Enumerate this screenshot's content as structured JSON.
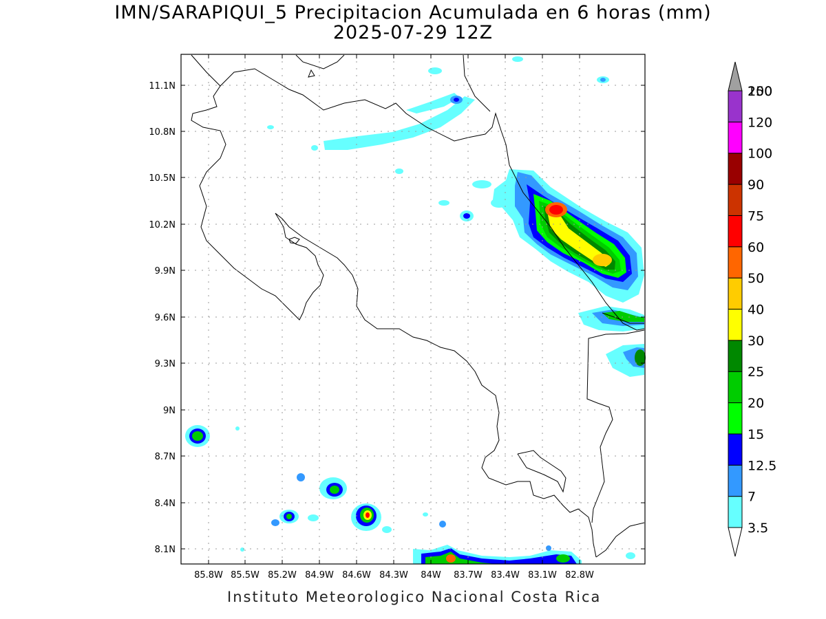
{
  "header": {
    "title": "IMN/SARAPIQUI_5 Precipitacion Acumulada en 6 horas (mm)",
    "subtitle": "2025-07-29 12Z"
  },
  "footer": {
    "credit": "Instituto Meteorologico Nacional Costa Rica"
  },
  "map": {
    "lat_ticks": [
      "11.1N",
      "10.8N",
      "10.5N",
      "10.2N",
      "9.9N",
      "9.6N",
      "9.3N",
      "9N",
      "8.7N",
      "8.4N",
      "8.1N"
    ],
    "lon_ticks": [
      "85.8W",
      "85.5W",
      "85.2W",
      "84.9W",
      "84.6W",
      "84.3W",
      "84W",
      "83.7W",
      "83.4W",
      "83.1W",
      "82.8W"
    ],
    "lat_range": [
      8.0,
      11.3
    ],
    "lon_range": [
      -86.0,
      -83.0
    ]
  },
  "colorbar": {
    "levels": [
      {
        "label": "3.5",
        "color": "#66ffff"
      },
      {
        "label": "7",
        "color": "#3399ff"
      },
      {
        "label": "12.5",
        "color": "#0000ff"
      },
      {
        "label": "15",
        "color": "#00ff00"
      },
      {
        "label": "20",
        "color": "#00cc00"
      },
      {
        "label": "25",
        "color": "#008800"
      },
      {
        "label": "30",
        "color": "#ffff00"
      },
      {
        "label": "40",
        "color": "#ffcc00"
      },
      {
        "label": "50",
        "color": "#ff6600"
      },
      {
        "label": "60",
        "color": "#ff0000"
      },
      {
        "label": "75",
        "color": "#cc3300"
      },
      {
        "label": "90",
        "color": "#990000"
      },
      {
        "label": "100",
        "color": "#ff00ff"
      },
      {
        "label": "120",
        "color": "#9933cc"
      },
      {
        "label": "150",
        "color": "#f2f2f2"
      },
      {
        "label": "200",
        "color": "#a0a0a0"
      }
    ]
  }
}
